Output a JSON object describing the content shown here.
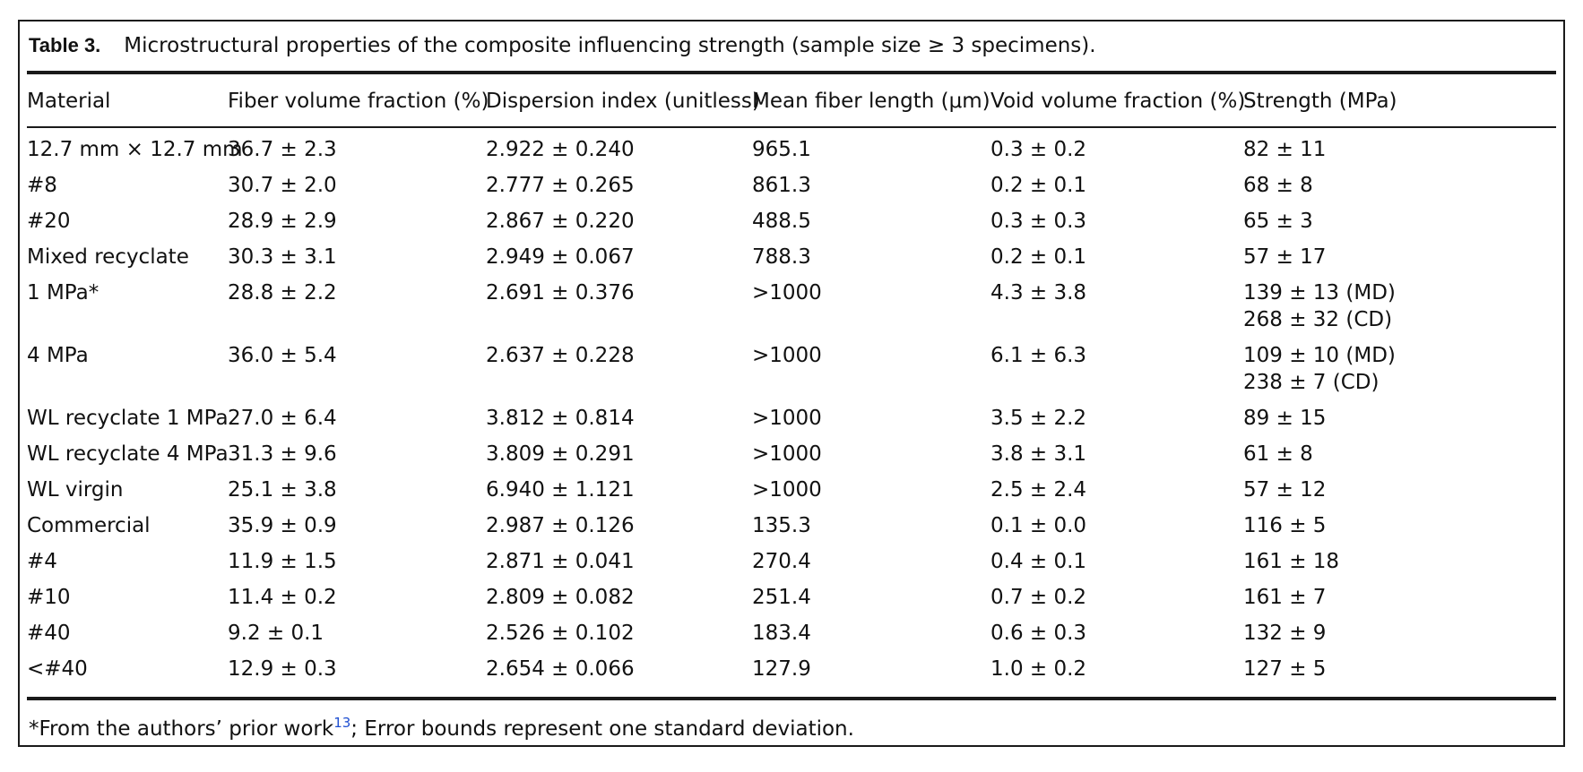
{
  "caption": {
    "label": "Table 3.",
    "text": "Microstructural properties of the composite influencing strength (sample size ≥ 3 specimens)."
  },
  "headers": [
    "Material",
    "Fiber volume fraction (%)",
    "Dispersion index (unitless)",
    "Mean fiber length (μm)",
    "Void volume fraction (%)",
    "Strength (MPa)"
  ],
  "rows": [
    {
      "material": "12.7 mm × 12.7 mm",
      "fiber": "36.7 ± 2.3",
      "dispersion": "2.922 ± 0.240",
      "length": "965.1",
      "void": "0.3 ± 0.2",
      "strength": "82 ± 11",
      "strength2": ""
    },
    {
      "material": "#8",
      "fiber": "30.7 ± 2.0",
      "dispersion": "2.777 ± 0.265",
      "length": "861.3",
      "void": "0.2 ± 0.1",
      "strength": "68 ± 8",
      "strength2": ""
    },
    {
      "material": "#20",
      "fiber": "28.9 ± 2.9",
      "dispersion": "2.867 ± 0.220",
      "length": "488.5",
      "void": "0.3 ± 0.3",
      "strength": "65 ± 3",
      "strength2": ""
    },
    {
      "material": "Mixed recyclate",
      "fiber": "30.3 ± 3.1",
      "dispersion": "2.949 ± 0.067",
      "length": "788.3",
      "void": "0.2 ± 0.1",
      "strength": "57 ± 17",
      "strength2": ""
    },
    {
      "material": "1 MPa*",
      "fiber": "28.8 ± 2.2",
      "dispersion": "2.691 ± 0.376",
      "length": ">1000",
      "void": "4.3 ± 3.8",
      "strength": "139 ± 13 (MD)",
      "strength2": "268 ± 32 (CD)"
    },
    {
      "material": "4 MPa",
      "fiber": "36.0 ± 5.4",
      "dispersion": "2.637 ± 0.228",
      "length": ">1000",
      "void": "6.1 ± 6.3",
      "strength": "109 ± 10 (MD)",
      "strength2": "238 ± 7 (CD)"
    },
    {
      "material": "WL recyclate 1 MPa",
      "fiber": "27.0 ± 6.4",
      "dispersion": "3.812 ± 0.814",
      "length": ">1000",
      "void": "3.5 ± 2.2",
      "strength": "89 ± 15",
      "strength2": ""
    },
    {
      "material": "WL recyclate 4 MPa",
      "fiber": "31.3 ± 9.6",
      "dispersion": "3.809 ± 0.291",
      "length": ">1000",
      "void": "3.8 ± 3.1",
      "strength": "61 ± 8",
      "strength2": ""
    },
    {
      "material": "WL virgin",
      "fiber": "25.1 ± 3.8",
      "dispersion": "6.940 ± 1.121",
      "length": ">1000",
      "void": "2.5 ± 2.4",
      "strength": "57 ± 12",
      "strength2": ""
    },
    {
      "material": "Commercial",
      "fiber": "35.9 ± 0.9",
      "dispersion": "2.987 ± 0.126",
      "length": "135.3",
      "void": "0.1 ± 0.0",
      "strength": "116 ± 5",
      "strength2": ""
    },
    {
      "material": "#4",
      "fiber": "11.9 ± 1.5",
      "dispersion": "2.871 ± 0.041",
      "length": "270.4",
      "void": "0.4 ± 0.1",
      "strength": "161 ± 18",
      "strength2": ""
    },
    {
      "material": "#10",
      "fiber": "11.4 ± 0.2",
      "dispersion": "2.809 ± 0.082",
      "length": "251.4",
      "void": "0.7 ± 0.2",
      "strength": "161 ± 7",
      "strength2": ""
    },
    {
      "material": "#40",
      "fiber": "9.2 ± 0.1",
      "dispersion": "2.526 ± 0.102",
      "length": "183.4",
      "void": "0.6 ± 0.3",
      "strength": "132 ± 9",
      "strength2": ""
    },
    {
      "material": "<#40",
      "fiber": "12.9 ± 0.3",
      "dispersion": "2.654 ± 0.066",
      "length": "127.9",
      "void": "1.0 ± 0.2",
      "strength": "127 ± 5",
      "strength2": ""
    }
  ],
  "footnote": {
    "prefix": "*From the authors’ prior work",
    "ref": "13",
    "suffix": "; Error bounds represent one standard deviation."
  },
  "colors": {
    "rule": "#1a1a1a",
    "link": "#1f4fd1"
  }
}
